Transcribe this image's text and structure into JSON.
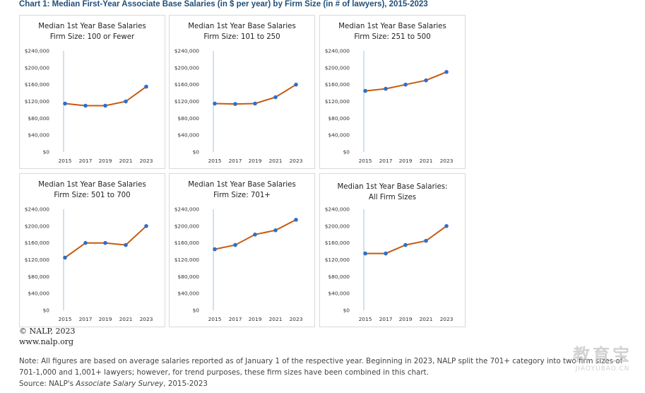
{
  "title": "Chart 1: Median First-Year Associate Base Salaries (in $ per year) by Firm Size (in # of lawyers), 2015-2023",
  "chart_data": [
    {
      "type": "line",
      "title_line1": "Median 1st Year Base Salaries",
      "title_line2": "Firm Size: 100 or Fewer",
      "x": [
        "2015",
        "2017",
        "2019",
        "2021",
        "2023"
      ],
      "values": [
        115000,
        110000,
        110000,
        120000,
        155000
      ],
      "ylim": [
        0,
        240000
      ],
      "yticks": [
        "$0",
        "$40,000",
        "$80,000",
        "$120,000",
        "$160,000",
        "$200,000",
        "$240,000"
      ],
      "series_color": "#c55a11",
      "marker_color": "#2e6fc9"
    },
    {
      "type": "line",
      "title_line1": "Median 1st Year Base Salaries",
      "title_line2": "Firm Size: 101 to 250",
      "x": [
        "2015",
        "2017",
        "2019",
        "2021",
        "2023"
      ],
      "values": [
        115000,
        114000,
        115000,
        130000,
        160000
      ],
      "ylim": [
        0,
        240000
      ],
      "yticks": [
        "$0",
        "$40,000",
        "$80,000",
        "$120,000",
        "$160,000",
        "$200,000",
        "$240,000"
      ],
      "series_color": "#c55a11",
      "marker_color": "#2e6fc9"
    },
    {
      "type": "line",
      "title_line1": "Median 1st Year Base Salaries",
      "title_line2": "Firm Size: 251 to 500",
      "x": [
        "2015",
        "2017",
        "2019",
        "2021",
        "2023"
      ],
      "values": [
        145000,
        150000,
        160000,
        170000,
        190000
      ],
      "ylim": [
        0,
        240000
      ],
      "yticks": [
        "$0",
        "$40,000",
        "$80,000",
        "$120,000",
        "$160,000",
        "$200,000",
        "$240,000"
      ],
      "series_color": "#c55a11",
      "marker_color": "#2e6fc9"
    },
    {
      "type": "line",
      "title_line1": "Median 1st Year Base Salaries",
      "title_line2": "Firm Size: 501 to 700",
      "x": [
        "2015",
        "2017",
        "2019",
        "2021",
        "2023"
      ],
      "values": [
        125000,
        160000,
        160000,
        155000,
        200000
      ],
      "ylim": [
        0,
        240000
      ],
      "yticks": [
        "$0",
        "$40,000",
        "$80,000",
        "$120,000",
        "$160,000",
        "$200,000",
        "$240,000"
      ],
      "series_color": "#c55a11",
      "marker_color": "#2e6fc9"
    },
    {
      "type": "line",
      "title_line1": "Median 1st Year Base Salaries",
      "title_line2": "Firm Size: 701+",
      "x": [
        "2015",
        "2017",
        "2019",
        "2021",
        "2023"
      ],
      "values": [
        145000,
        155000,
        180000,
        190000,
        215000
      ],
      "ylim": [
        0,
        240000
      ],
      "yticks": [
        "$0",
        "$40,000",
        "$80,000",
        "$120,000",
        "$160,000",
        "$200,000",
        "$240,000"
      ],
      "series_color": "#c55a11",
      "marker_color": "#2e6fc9"
    },
    {
      "type": "line",
      "title_line1": "Median 1st Year Base Salaries:",
      "title_line2": "All Firm Sizes",
      "x": [
        "2015",
        "2017",
        "2019",
        "2021",
        "2023"
      ],
      "values": [
        135000,
        135000,
        155000,
        165000,
        200000
      ],
      "ylim": [
        0,
        240000
      ],
      "yticks": [
        "$0",
        "$40,000",
        "$80,000",
        "$120,000",
        "$160,000",
        "$200,000",
        "$240,000"
      ],
      "series_color": "#c55a11",
      "marker_color": "#2e6fc9"
    }
  ],
  "credit": {
    "copyright": "© NALP, 2023",
    "url": "www.nalp.org"
  },
  "notes": {
    "line1": "Note: All figures are based on average salaries reported as of January 1 of the respective year. Beginning in 2023, NALP split the 701+ category into two firm sizes of",
    "line2": "701-1,000 and 1,001+ lawyers; however, for trend purposes, these firm sizes have been combined in this chart.",
    "source_prefix": "Source: NALP's ",
    "source_italic": "Associate Salary Survey",
    "source_suffix": ", 2015-2023"
  },
  "watermark": {
    "main": "教育宝",
    "sub": "JIAOYUBAO.CN"
  }
}
